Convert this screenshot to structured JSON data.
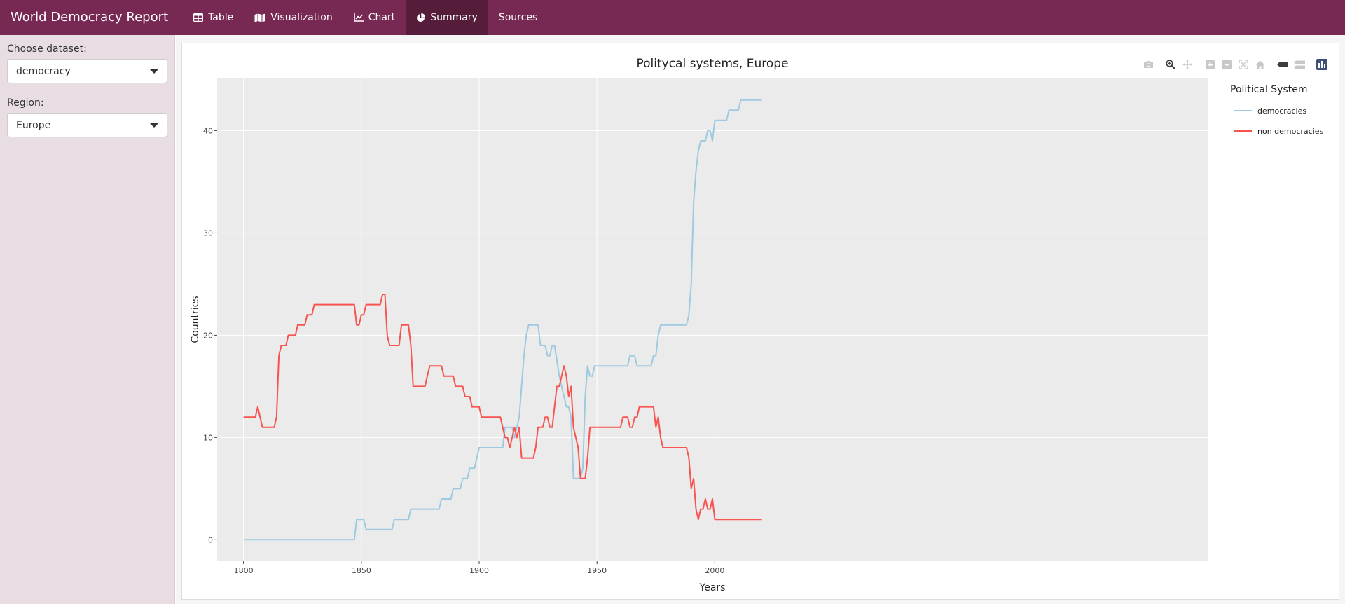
{
  "app": {
    "brand": "World Democracy Report"
  },
  "nav": {
    "tabs": [
      {
        "label": "Table",
        "icon": "table-icon"
      },
      {
        "label": "Visualization",
        "icon": "map-icon"
      },
      {
        "label": "Chart",
        "icon": "line-chart-icon"
      },
      {
        "label": "Summary",
        "icon": "pie-chart-icon",
        "active": true
      },
      {
        "label": "Sources"
      }
    ]
  },
  "sidebar": {
    "dataset_label": "Choose dataset:",
    "dataset_value": "democracy",
    "region_label": "Region:",
    "region_value": "Europe"
  },
  "modebar": {
    "icons": [
      "camera-icon",
      "zoom-icon",
      "pan-icon",
      "zoom-in-icon",
      "zoom-out-icon",
      "autoscale-icon",
      "home-icon",
      "hover-closest-icon",
      "hover-compare-icon",
      "plotly-logo-icon"
    ]
  },
  "colors": {
    "navbar": "#772953",
    "navbar_active": "#561d3b",
    "sidebar": "#e8dde3",
    "plot_bg": "#ebebeb",
    "democracies": "#9ecae1",
    "non_democracies": "#f8534f"
  },
  "chart_data": {
    "type": "line",
    "title": "Politycal systems, Europe",
    "xlabel": "Years",
    "ylabel": "Countries",
    "xlim": [
      1788.8,
      2209.5
    ],
    "ylim": [
      -2.1,
      45.1
    ],
    "xticks": [
      1800,
      1850,
      1900,
      1950,
      2000
    ],
    "yticks": [
      0,
      10,
      20,
      30,
      40
    ],
    "grid": true,
    "legend": {
      "title": "Political System",
      "position": "right"
    },
    "series": [
      {
        "name": "democracies",
        "color": "#9ecae1",
        "points": [
          [
            1800,
            0
          ],
          [
            1847,
            0
          ],
          [
            1848,
            2
          ],
          [
            1851,
            2
          ],
          [
            1852,
            1
          ],
          [
            1863,
            1
          ],
          [
            1864,
            2
          ],
          [
            1870,
            2
          ],
          [
            1871,
            3
          ],
          [
            1883,
            3
          ],
          [
            1884,
            4
          ],
          [
            1888,
            4
          ],
          [
            1889,
            5
          ],
          [
            1892,
            5
          ],
          [
            1893,
            6
          ],
          [
            1895,
            6
          ],
          [
            1896,
            7
          ],
          [
            1898,
            7
          ],
          [
            1899,
            8
          ],
          [
            1900,
            9
          ],
          [
            1910,
            9
          ],
          [
            1911,
            11
          ],
          [
            1914,
            11
          ],
          [
            1915,
            10
          ],
          [
            1917,
            12
          ],
          [
            1919,
            18
          ],
          [
            1920,
            20
          ],
          [
            1921,
            21
          ],
          [
            1925,
            21
          ],
          [
            1926,
            19
          ],
          [
            1928,
            19
          ],
          [
            1929,
            18
          ],
          [
            1930,
            18
          ],
          [
            1931,
            19
          ],
          [
            1932,
            19
          ],
          [
            1934,
            16
          ],
          [
            1935,
            15
          ],
          [
            1936,
            14
          ],
          [
            1937,
            13
          ],
          [
            1938,
            13
          ],
          [
            1939,
            12
          ],
          [
            1940,
            6
          ],
          [
            1943,
            6
          ],
          [
            1944,
            7
          ],
          [
            1945,
            14
          ],
          [
            1946,
            17
          ],
          [
            1947,
            16
          ],
          [
            1948,
            16
          ],
          [
            1949,
            17
          ],
          [
            1963,
            17
          ],
          [
            1964,
            18
          ],
          [
            1966,
            18
          ],
          [
            1967,
            17
          ],
          [
            1973,
            17
          ],
          [
            1974,
            18
          ],
          [
            1975,
            18
          ],
          [
            1976,
            20
          ],
          [
            1977,
            21
          ],
          [
            1988,
            21
          ],
          [
            1989,
            22
          ],
          [
            1990,
            25
          ],
          [
            1991,
            33
          ],
          [
            1992,
            36
          ],
          [
            1993,
            38
          ],
          [
            1994,
            39
          ],
          [
            1996,
            39
          ],
          [
            1997,
            40
          ],
          [
            1998,
            40
          ],
          [
            1999,
            39
          ],
          [
            2000,
            41
          ],
          [
            2005,
            41
          ],
          [
            2006,
            42
          ],
          [
            2010,
            42
          ],
          [
            2011,
            43
          ],
          [
            2020,
            43
          ]
        ]
      },
      {
        "name": "non democracies",
        "color": "#f8534f",
        "points": [
          [
            1800,
            12
          ],
          [
            1805,
            12
          ],
          [
            1806,
            13
          ],
          [
            1808,
            11
          ],
          [
            1813,
            11
          ],
          [
            1814,
            12
          ],
          [
            1815,
            18
          ],
          [
            1816,
            19
          ],
          [
            1818,
            19
          ],
          [
            1819,
            20
          ],
          [
            1822,
            20
          ],
          [
            1823,
            21
          ],
          [
            1826,
            21
          ],
          [
            1827,
            22
          ],
          [
            1829,
            22
          ],
          [
            1830,
            23
          ],
          [
            1847,
            23
          ],
          [
            1848,
            21
          ],
          [
            1849,
            21
          ],
          [
            1850,
            22
          ],
          [
            1851,
            22
          ],
          [
            1852,
            23
          ],
          [
            1858,
            23
          ],
          [
            1859,
            24
          ],
          [
            1860,
            24
          ],
          [
            1861,
            20
          ],
          [
            1862,
            19
          ],
          [
            1866,
            19
          ],
          [
            1867,
            21
          ],
          [
            1870,
            21
          ],
          [
            1871,
            19
          ],
          [
            1872,
            15
          ],
          [
            1877,
            15
          ],
          [
            1878,
            16
          ],
          [
            1879,
            17
          ],
          [
            1884,
            17
          ],
          [
            1885,
            16
          ],
          [
            1889,
            16
          ],
          [
            1890,
            15
          ],
          [
            1893,
            15
          ],
          [
            1894,
            14
          ],
          [
            1896,
            14
          ],
          [
            1897,
            13
          ],
          [
            1900,
            13
          ],
          [
            1901,
            12
          ],
          [
            1909,
            12
          ],
          [
            1910,
            11
          ],
          [
            1911,
            10
          ],
          [
            1912,
            10
          ],
          [
            1913,
            9
          ],
          [
            1915,
            11
          ],
          [
            1916,
            10
          ],
          [
            1917,
            11
          ],
          [
            1918,
            8
          ],
          [
            1923,
            8
          ],
          [
            1924,
            9
          ],
          [
            1925,
            11
          ],
          [
            1927,
            11
          ],
          [
            1928,
            12
          ],
          [
            1929,
            12
          ],
          [
            1930,
            11
          ],
          [
            1931,
            11
          ],
          [
            1932,
            13
          ],
          [
            1933,
            15
          ],
          [
            1934,
            15
          ],
          [
            1935,
            16
          ],
          [
            1936,
            17
          ],
          [
            1937,
            16
          ],
          [
            1938,
            14
          ],
          [
            1939,
            15
          ],
          [
            1940,
            11
          ],
          [
            1941,
            10
          ],
          [
            1942,
            9
          ],
          [
            1943,
            6
          ],
          [
            1945,
            6
          ],
          [
            1946,
            8
          ],
          [
            1947,
            11
          ],
          [
            1960,
            11
          ],
          [
            1961,
            12
          ],
          [
            1963,
            12
          ],
          [
            1964,
            11
          ],
          [
            1965,
            11
          ],
          [
            1966,
            12
          ],
          [
            1967,
            12
          ],
          [
            1968,
            13
          ],
          [
            1974,
            13
          ],
          [
            1975,
            11
          ],
          [
            1976,
            12
          ],
          [
            1977,
            10
          ],
          [
            1978,
            9
          ],
          [
            1988,
            9
          ],
          [
            1989,
            8
          ],
          [
            1990,
            5
          ],
          [
            1991,
            6
          ],
          [
            1992,
            3
          ],
          [
            1993,
            2
          ],
          [
            1994,
            3
          ],
          [
            1995,
            3
          ],
          [
            1996,
            4
          ],
          [
            1997,
            3
          ],
          [
            1998,
            3
          ],
          [
            1999,
            4
          ],
          [
            2000,
            2
          ],
          [
            2020,
            2
          ]
        ]
      }
    ]
  }
}
